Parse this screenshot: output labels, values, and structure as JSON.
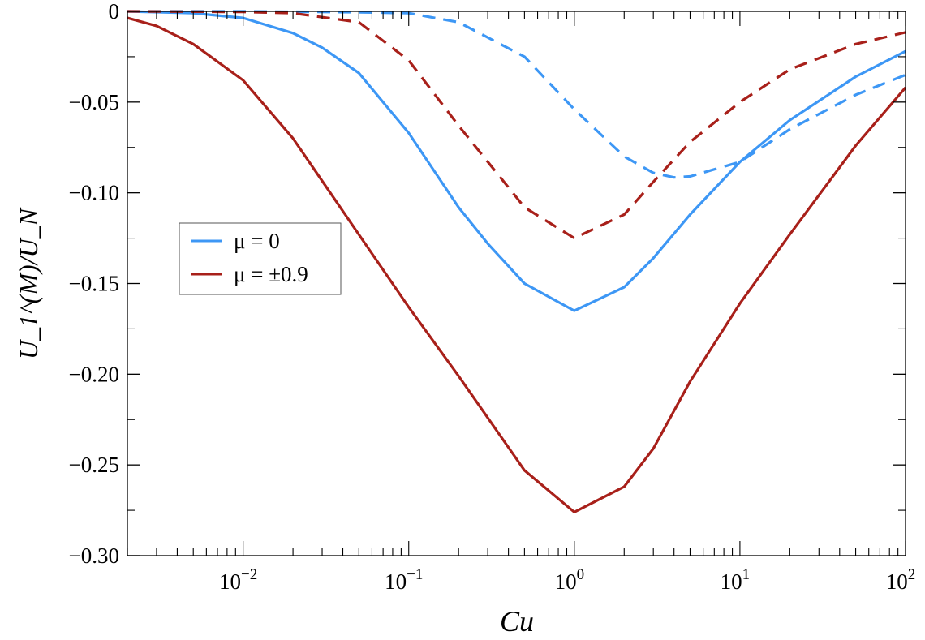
{
  "chart_data": {
    "type": "line",
    "xlabel": "Cu",
    "ylabel": "U_1^(M)/U_N",
    "xscale": "log",
    "xlim": [
      0.002,
      100
    ],
    "ylim": [
      -0.3,
      0
    ],
    "x_ticks": [
      0.01,
      0.1,
      1,
      10,
      100
    ],
    "x_tick_labels": [
      {
        "base": "10",
        "exp": "−2"
      },
      {
        "base": "10",
        "exp": "−1"
      },
      {
        "base": "10",
        "exp": "0"
      },
      {
        "base": "10",
        "exp": "1"
      },
      {
        "base": "10",
        "exp": "2"
      }
    ],
    "y_ticks": [
      0,
      -0.05,
      -0.1,
      -0.15,
      -0.2,
      -0.25,
      -0.3
    ],
    "y_tick_labels": [
      "0",
      "−0.05",
      "−0.10",
      "−0.15",
      "−0.20",
      "−0.25",
      "−0.30"
    ],
    "grid": false,
    "legend_placement": "center-left",
    "legend": [
      {
        "label": "μ = 0",
        "color": "#3d97f5"
      },
      {
        "label": "μ = ±0.9",
        "color": "#a8201a"
      }
    ],
    "series": [
      {
        "name": "μ = 0",
        "color": "#3d97f5",
        "style": "solid",
        "x": [
          0.002,
          0.005,
          0.01,
          0.02,
          0.03,
          0.05,
          0.1,
          0.2,
          0.3,
          0.5,
          1,
          2,
          3,
          5,
          10,
          20,
          50,
          100
        ],
        "y": [
          0,
          -0.001,
          -0.0036,
          -0.012,
          -0.02,
          -0.034,
          -0.067,
          -0.108,
          -0.128,
          -0.15,
          -0.165,
          -0.152,
          -0.136,
          -0.112,
          -0.083,
          -0.06,
          -0.036,
          -0.022
        ]
      },
      {
        "name": "μ = ±0.9",
        "color": "#a8201a",
        "style": "solid",
        "x": [
          0.002,
          0.003,
          0.005,
          0.01,
          0.02,
          0.05,
          0.1,
          0.2,
          0.5,
          1,
          2,
          3,
          5,
          10,
          20,
          50,
          100
        ],
        "y": [
          -0.0036,
          -0.008,
          -0.018,
          -0.038,
          -0.07,
          -0.123,
          -0.163,
          -0.201,
          -0.253,
          -0.276,
          -0.262,
          -0.241,
          -0.204,
          -0.161,
          -0.123,
          -0.074,
          -0.042
        ]
      },
      {
        "color": "#3d97f5",
        "style": "dashed",
        "x": [
          0.002,
          0.01,
          0.05,
          0.1,
          0.2,
          0.5,
          1,
          2,
          3,
          4,
          5,
          10,
          20,
          50,
          100
        ],
        "y": [
          0,
          0,
          -0.0005,
          -0.001,
          -0.006,
          -0.025,
          -0.054,
          -0.08,
          -0.089,
          -0.0915,
          -0.091,
          -0.083,
          -0.065,
          -0.046,
          -0.035
        ]
      },
      {
        "color": "#a8201a",
        "style": "dashed",
        "x": [
          0.002,
          0.01,
          0.02,
          0.05,
          0.1,
          0.2,
          0.5,
          1,
          2,
          3,
          5,
          10,
          20,
          50,
          100
        ],
        "y": [
          0,
          -0.0003,
          -0.001,
          -0.006,
          -0.027,
          -0.063,
          -0.108,
          -0.125,
          -0.112,
          -0.094,
          -0.072,
          -0.05,
          -0.032,
          -0.018,
          -0.0116
        ]
      }
    ]
  }
}
